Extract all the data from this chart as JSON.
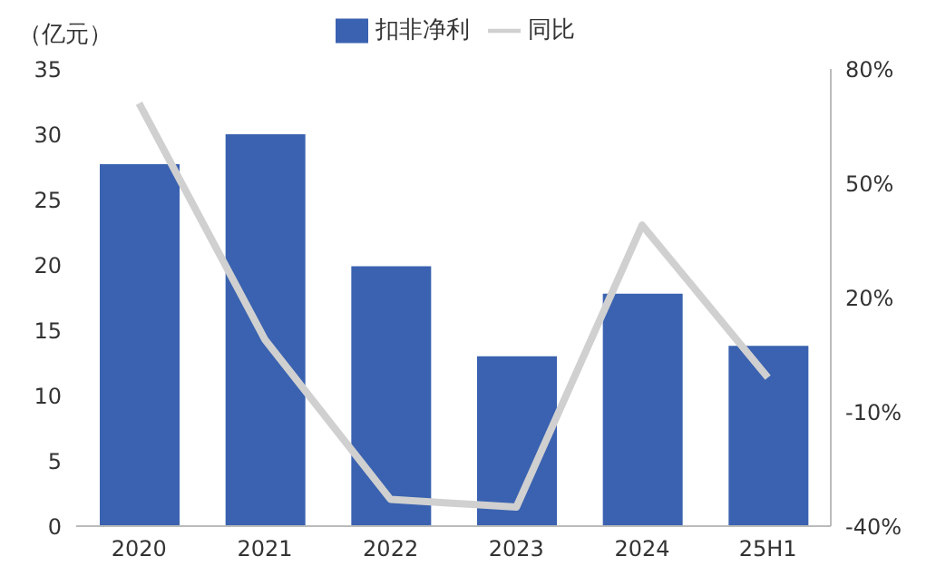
{
  "chart_data": {
    "type": "bar",
    "ylabel": "（亿元）",
    "categories": [
      "2020",
      "2021",
      "2022",
      "2023",
      "2024",
      "25H1"
    ],
    "series": [
      {
        "name": "扣非净利",
        "color": "#3a62b0",
        "values": [
          27.7,
          30.0,
          19.9,
          13.0,
          17.8,
          13.8
        ]
      },
      {
        "name": "同比",
        "type": "line",
        "axis": "y2",
        "color": "#d0d0d0",
        "values": [
          71,
          9,
          -33,
          -35,
          39,
          -1
        ]
      }
    ],
    "ylim": [
      0,
      35
    ],
    "yticks": [
      0,
      5,
      10,
      15,
      20,
      25,
      30,
      35
    ],
    "y2lim": [
      -40,
      80
    ],
    "y2ticks": [
      {
        "value": 80,
        "label": "80%"
      },
      {
        "value": 50,
        "label": "50%"
      },
      {
        "value": 20,
        "label": "20%"
      },
      {
        "value": -10,
        "label": "-10%"
      },
      {
        "value": -40,
        "label": "-40%"
      }
    ],
    "legend": "top",
    "grid": false,
    "marker": "none"
  }
}
